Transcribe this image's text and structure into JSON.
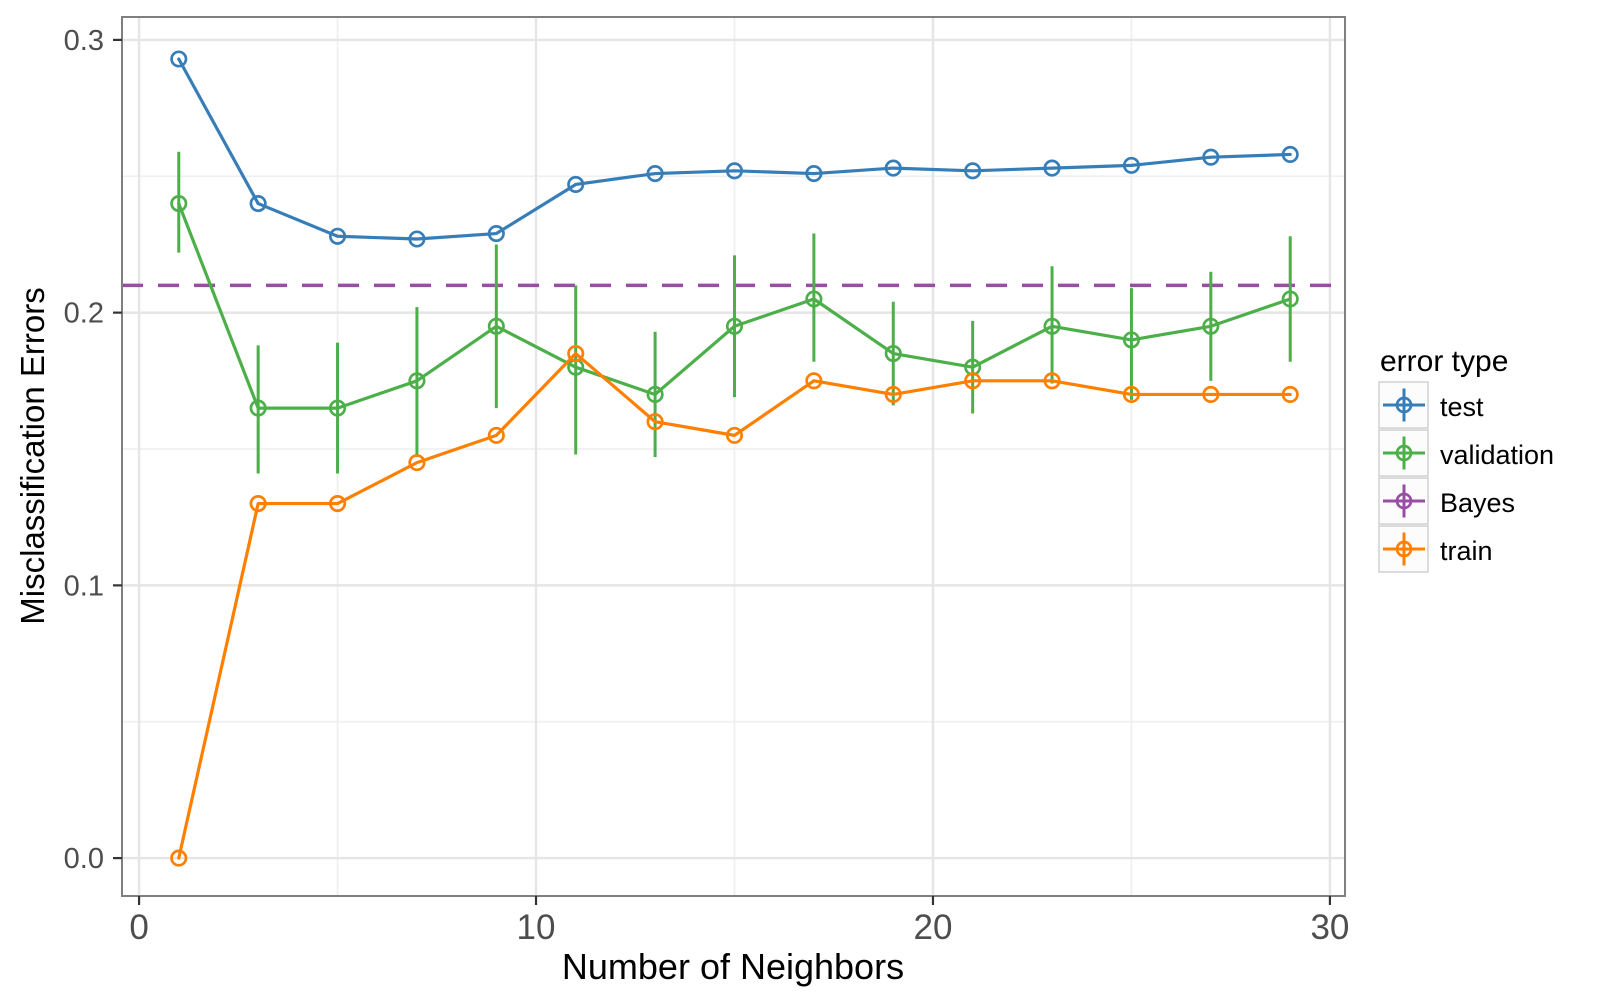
{
  "chart_data": {
    "type": "line",
    "title": "",
    "xlabel": "Number of Neighbors",
    "ylabel": "Misclassification Errors",
    "x": [
      1,
      3,
      5,
      7,
      9,
      11,
      13,
      15,
      17,
      19,
      21,
      23,
      25,
      27,
      29
    ],
    "series": [
      {
        "name": "test",
        "kind": "line",
        "color": "#377EB8",
        "values": [
          0.293,
          0.24,
          0.228,
          0.227,
          0.229,
          0.247,
          0.251,
          0.252,
          0.251,
          0.253,
          0.252,
          0.253,
          0.254,
          0.257,
          0.258
        ]
      },
      {
        "name": "validation",
        "kind": "line",
        "color": "#4DAF4A",
        "values": [
          0.24,
          0.165,
          0.165,
          0.175,
          0.195,
          0.18,
          0.17,
          0.195,
          0.205,
          0.185,
          0.18,
          0.195,
          0.19,
          0.195,
          0.205
        ],
        "error_low": [
          0.222,
          0.141,
          0.141,
          0.147,
          0.165,
          0.148,
          0.147,
          0.169,
          0.182,
          0.166,
          0.163,
          0.174,
          0.168,
          0.175,
          0.182
        ],
        "error_high": [
          0.259,
          0.188,
          0.189,
          0.202,
          0.225,
          0.21,
          0.193,
          0.221,
          0.229,
          0.204,
          0.197,
          0.217,
          0.209,
          0.215,
          0.228
        ]
      },
      {
        "name": "Bayes",
        "kind": "hline",
        "color": "#984EA3",
        "value": 0.21,
        "dashed": true
      },
      {
        "name": "train",
        "kind": "line",
        "color": "#FF7F00",
        "values": [
          0.0,
          0.13,
          0.13,
          0.145,
          0.155,
          0.185,
          0.16,
          0.155,
          0.175,
          0.17,
          0.175,
          0.175,
          0.17,
          0.17,
          0.17
        ]
      }
    ],
    "axes": {
      "xlim": [
        -0.43,
        30.38
      ],
      "ylim": [
        -0.0139,
        0.3084
      ],
      "x_ticks": [
        0,
        10,
        20,
        30
      ],
      "x_tick_labels": [
        "0",
        "10",
        "20",
        "30"
      ],
      "x_minor": [
        5,
        15,
        25
      ],
      "y_ticks": [
        0.0,
        0.1,
        0.2,
        0.3
      ],
      "y_tick_labels": [
        "0.0",
        "0.1",
        "0.2",
        "0.3"
      ],
      "y_minor": [
        0.05,
        0.15,
        0.25
      ],
      "grid": true
    },
    "legend": {
      "title": "error type",
      "position": "right",
      "items": [
        "test",
        "validation",
        "Bayes",
        "train"
      ]
    },
    "style": {
      "major_grid_color": "#e5e5e5",
      "minor_grid_color": "#f0f0f0",
      "panel_border_color": "#7f7f7f",
      "tick_color": "#333333",
      "tick_label_color": "#4d4d4d"
    }
  }
}
